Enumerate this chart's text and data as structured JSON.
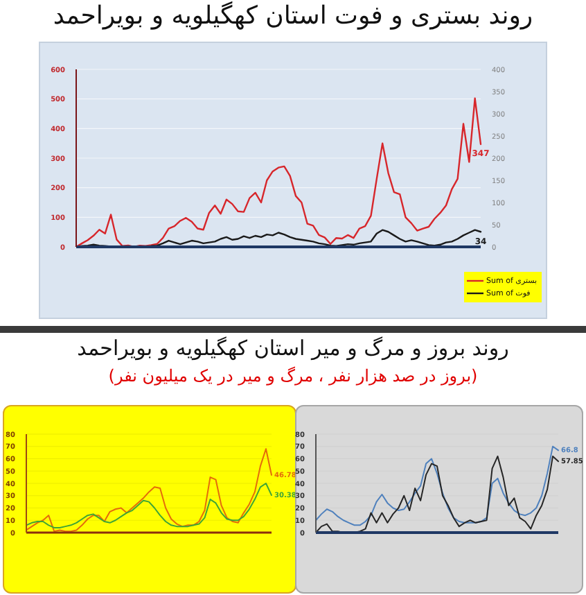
{
  "chart_data": [
    {
      "type": "line",
      "title": "روند بستری و فوت استان کهگیلویه و بویراحمد",
      "categories": [
        null,
        null,
        null,
        null,
        null,
        null,
        null,
        null,
        null,
        null,
        null,
        null,
        null,
        null,
        null,
        null,
        null,
        null,
        null,
        null,
        null,
        null,
        null,
        null,
        null,
        null,
        null,
        null,
        null,
        null,
        null,
        null,
        null,
        null,
        null,
        null,
        null,
        null,
        null,
        null,
        null,
        null,
        null,
        null,
        null,
        null,
        null,
        null,
        null,
        null,
        null,
        null,
        null,
        null,
        null,
        null,
        null,
        null,
        null,
        null,
        null,
        null,
        null,
        null,
        null,
        null,
        null,
        null,
        null,
        null,
        null
      ],
      "series": [
        {
          "name": "Sum of بستری",
          "color": "#d7262b",
          "values": [
            0,
            12,
            23,
            38,
            58,
            45,
            109,
            25,
            3,
            5,
            0,
            4,
            3,
            6,
            10,
            30,
            62,
            70,
            88,
            98,
            85,
            62,
            58,
            115,
            140,
            112,
            160,
            145,
            120,
            118,
            165,
            183,
            150,
            225,
            255,
            268,
            272,
            240,
            172,
            150,
            78,
            72,
            40,
            32,
            10,
            30,
            28,
            40,
            30,
            62,
            70,
            105,
            230,
            350,
            250,
            185,
            178,
            100,
            80,
            55,
            62,
            68,
            95,
            115,
            140,
            195,
            230,
            416,
            287,
            502,
            347
          ],
          "value_labels": [
            null,
            null,
            null,
            null,
            null,
            null,
            null,
            null,
            null,
            null,
            null,
            null,
            null,
            null,
            null,
            null,
            null,
            null,
            null,
            null,
            null,
            null,
            null,
            null,
            null,
            null,
            null,
            null,
            null,
            null,
            null,
            null,
            null,
            null,
            null,
            null,
            null,
            null,
            null,
            null,
            null,
            null,
            null,
            null,
            null,
            null,
            null,
            null,
            null,
            null,
            null,
            null,
            null,
            null,
            null,
            null,
            null,
            null,
            null,
            null,
            null,
            null,
            null,
            null,
            null,
            null,
            null,
            null,
            null,
            null,
            "347"
          ]
        },
        {
          "name": "Sum of فوت",
          "color": "#1a1a1a",
          "axis": "y2",
          "values": [
            0,
            2,
            3,
            5,
            3,
            2,
            1,
            null,
            null,
            null,
            null,
            null,
            null,
            2,
            3,
            8,
            14,
            10,
            6,
            10,
            14,
            12,
            8,
            10,
            12,
            18,
            22,
            16,
            18,
            24,
            20,
            25,
            22,
            28,
            26,
            32,
            28,
            22,
            18,
            16,
            14,
            12,
            8,
            6,
            3,
            2,
            4,
            6,
            5,
            8,
            10,
            12,
            30,
            38,
            34,
            26,
            18,
            12,
            15,
            12,
            8,
            4,
            3,
            5,
            10,
            12,
            18,
            26,
            32,
            38,
            34
          ],
          "value_labels": [
            null,
            null,
            null,
            null,
            null,
            null,
            null,
            null,
            null,
            null,
            null,
            null,
            null,
            null,
            null,
            null,
            null,
            null,
            null,
            null,
            null,
            null,
            null,
            null,
            null,
            null,
            null,
            null,
            null,
            null,
            null,
            null,
            null,
            null,
            null,
            null,
            null,
            null,
            null,
            null,
            null,
            null,
            null,
            null,
            null,
            null,
            null,
            null,
            null,
            null,
            null,
            null,
            null,
            null,
            null,
            null,
            null,
            null,
            null,
            null,
            null,
            null,
            null,
            null,
            null,
            null,
            null,
            null,
            null,
            null,
            "34"
          ]
        }
      ],
      "ylim": [
        0,
        600
      ],
      "yticks": [
        0,
        100,
        200,
        300,
        400,
        500,
        600
      ],
      "y2lim": [
        0,
        400
      ],
      "y2ticks": [
        0,
        50,
        100,
        150,
        200,
        250,
        300,
        350,
        400
      ],
      "grid": "y",
      "legend": "bottom right"
    },
    {
      "type": "line",
      "title": "روند بروز و مرگ و میر استان کهگیلویه و بویراحمد",
      "subtitle": "(بروز در صد هزار نفر ، مرگ و میر در یک میلیون نفر)",
      "categories": [
        null,
        null,
        null,
        null,
        null,
        null,
        null,
        null,
        null,
        null,
        null,
        null,
        null,
        null,
        null,
        null,
        null,
        null,
        null,
        null,
        null,
        null,
        null,
        null,
        null,
        null,
        null,
        null,
        null,
        null,
        null,
        null,
        null,
        null,
        null,
        null,
        null,
        null,
        null,
        null,
        null,
        null,
        null,
        null,
        null
      ],
      "series": [
        {
          "color": "#e46c0a",
          "values": [
            2,
            5,
            8,
            10,
            14,
            1,
            2,
            1,
            1,
            2,
            6,
            11,
            14,
            14,
            9,
            17,
            19,
            20,
            16,
            20,
            24,
            28,
            33,
            37,
            36,
            20,
            11,
            7,
            5,
            6,
            6,
            9,
            18,
            45,
            43,
            22,
            12,
            9,
            8,
            16,
            23,
            33,
            54,
            68,
            46.78
          ],
          "value_labels": [
            null,
            null,
            null,
            null,
            null,
            null,
            null,
            null,
            null,
            null,
            null,
            null,
            null,
            null,
            null,
            null,
            null,
            null,
            null,
            null,
            null,
            null,
            null,
            null,
            null,
            null,
            null,
            null,
            null,
            null,
            null,
            null,
            null,
            null,
            null,
            null,
            null,
            null,
            null,
            null,
            null,
            null,
            null,
            null,
            "46.78"
          ]
        },
        {
          "color": "#3fa535",
          "values": [
            6,
            8,
            9,
            9,
            6,
            4,
            4,
            5,
            6,
            8,
            11,
            14,
            15,
            12,
            9,
            8,
            10,
            13,
            16,
            18,
            22,
            26,
            25,
            20,
            14,
            9,
            6,
            5,
            5,
            5,
            6,
            7,
            12,
            27,
            24,
            16,
            11,
            10,
            10,
            13,
            19,
            27,
            37,
            40,
            30.38
          ],
          "value_labels": [
            null,
            null,
            null,
            null,
            null,
            null,
            null,
            null,
            null,
            null,
            null,
            null,
            null,
            null,
            null,
            null,
            null,
            null,
            null,
            null,
            null,
            null,
            null,
            null,
            null,
            null,
            null,
            null,
            null,
            null,
            null,
            null,
            null,
            null,
            null,
            null,
            null,
            null,
            null,
            null,
            null,
            null,
            null,
            null,
            "30.38"
          ]
        }
      ],
      "ylim": [
        0,
        80
      ],
      "yticks": [
        0,
        10,
        20,
        30,
        40,
        50,
        60,
        70,
        80
      ],
      "grid": "y"
    },
    {
      "type": "line",
      "categories": [
        null,
        null,
        null,
        null,
        null,
        null,
        null,
        null,
        null,
        null,
        null,
        null,
        null,
        null,
        null,
        null,
        null,
        null,
        null,
        null,
        null,
        null,
        null,
        null,
        null,
        null,
        null,
        null,
        null,
        null,
        null,
        null,
        null,
        null,
        null,
        null,
        null,
        null,
        null,
        null,
        null,
        null,
        null,
        null,
        null
      ],
      "series": [
        {
          "color": "#4f81bd",
          "values": [
            10,
            15,
            19,
            17,
            13,
            10,
            8,
            6,
            6,
            9,
            14,
            25,
            31,
            24,
            20,
            18,
            19,
            25,
            32,
            38,
            56,
            60,
            48,
            32,
            20,
            12,
            9,
            8,
            8,
            8,
            9,
            12,
            40,
            44,
            32,
            24,
            18,
            15,
            14,
            16,
            20,
            30,
            48,
            70,
            66.8
          ],
          "value_labels": [
            null,
            null,
            null,
            null,
            null,
            null,
            null,
            null,
            null,
            null,
            null,
            null,
            null,
            null,
            null,
            null,
            null,
            null,
            null,
            null,
            null,
            null,
            null,
            null,
            null,
            null,
            null,
            null,
            null,
            null,
            null,
            null,
            null,
            null,
            null,
            null,
            null,
            null,
            null,
            null,
            null,
            null,
            null,
            null,
            "66.8"
          ]
        },
        {
          "color": "#262626",
          "values": [
            0,
            5,
            7,
            1,
            1,
            0,
            0,
            0,
            1,
            3,
            16,
            8,
            16,
            8,
            15,
            20,
            30,
            18,
            36,
            26,
            47,
            56,
            54,
            30,
            22,
            12,
            5,
            8,
            10,
            8,
            9,
            10,
            52,
            62,
            45,
            22,
            28,
            12,
            9,
            3,
            14,
            22,
            35,
            62,
            57.85
          ],
          "value_labels": [
            null,
            null,
            null,
            null,
            null,
            null,
            null,
            null,
            null,
            null,
            null,
            null,
            null,
            null,
            null,
            null,
            null,
            null,
            null,
            null,
            null,
            null,
            null,
            null,
            null,
            null,
            null,
            null,
            null,
            null,
            null,
            null,
            null,
            null,
            null,
            null,
            null,
            null,
            null,
            null,
            null,
            null,
            null,
            null,
            "57.85"
          ]
        }
      ],
      "ylim": [
        0,
        80
      ],
      "yticks": [
        0,
        10,
        20,
        30,
        40,
        50,
        60,
        70,
        80
      ],
      "grid": "y"
    }
  ]
}
